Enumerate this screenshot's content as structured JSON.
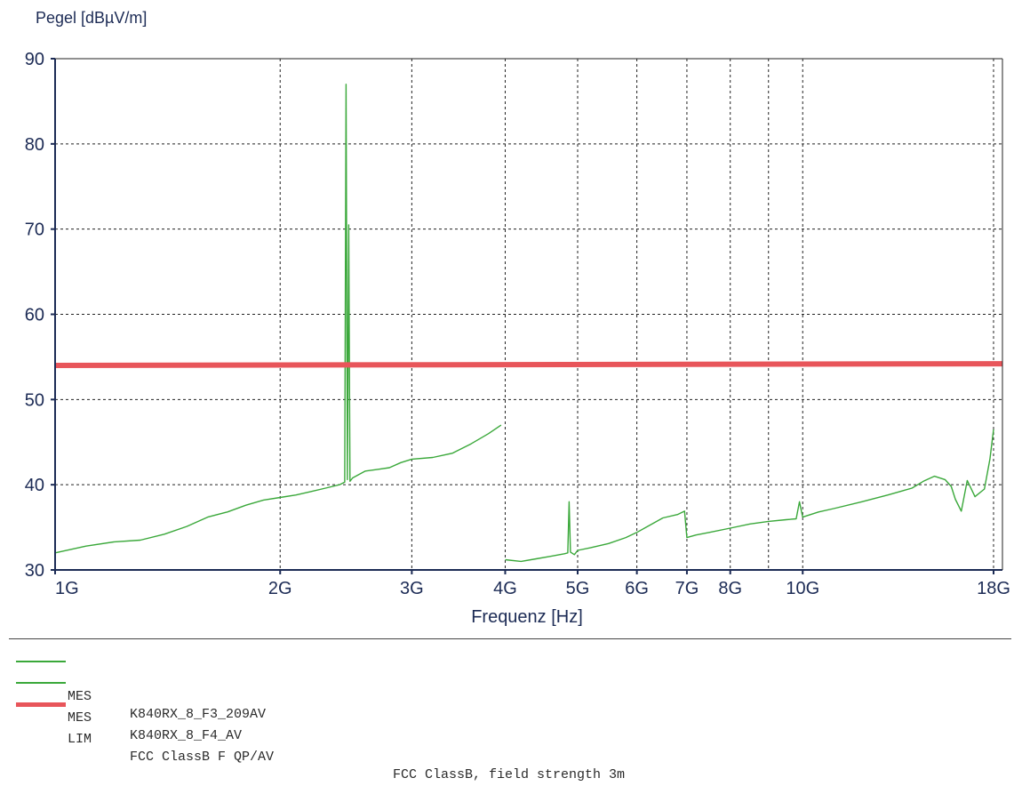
{
  "chart_data": {
    "type": "line",
    "ylabel": "Pegel [dBµV/m]",
    "xlabel": "Frequenz [Hz]",
    "x_scale": "log",
    "xlim": [
      1000000000,
      18500000000
    ],
    "ylim": [
      30,
      90
    ],
    "yticks": [
      30,
      40,
      50,
      60,
      70,
      80,
      90
    ],
    "xticks": [
      {
        "value": 1000000000,
        "label": "1G"
      },
      {
        "value": 2000000000,
        "label": "2G"
      },
      {
        "value": 3000000000,
        "label": "3G"
      },
      {
        "value": 4000000000,
        "label": "4G"
      },
      {
        "value": 5000000000,
        "label": "5G"
      },
      {
        "value": 6000000000,
        "label": "6G"
      },
      {
        "value": 7000000000,
        "label": "7G"
      },
      {
        "value": 8000000000,
        "label": "8G"
      },
      {
        "value": 10000000000,
        "label": "10G"
      },
      {
        "value": 18000000000,
        "label": "18G"
      }
    ],
    "x_gridlines": [
      2000000000,
      3000000000,
      4000000000,
      5000000000,
      6000000000,
      7000000000,
      8000000000,
      9000000000,
      10000000000,
      18000000000
    ],
    "grid": true,
    "colors": {
      "measurement": "#3aa83a",
      "limit": "#e8555a",
      "axes": "#1c2b55"
    },
    "series": [
      {
        "kind": "measurement",
        "x": [
          1000000000,
          1100000000,
          1200000000,
          1300000000,
          1400000000,
          1500000000,
          1600000000,
          1700000000,
          1800000000,
          1900000000,
          2000000000,
          2100000000,
          2200000000,
          2300000000,
          2400000000,
          2440000000,
          2450000000,
          2460000000,
          2470000000,
          2480000000,
          2500000000,
          2600000000,
          2700000000,
          2800000000,
          2900000000,
          3000000000,
          3200000000,
          3400000000,
          3600000000,
          3800000000,
          3950000000
        ],
        "y": [
          32,
          32.8,
          33.3,
          33.5,
          34.2,
          35.1,
          36.2,
          36.8,
          37.6,
          38.2,
          38.5,
          38.8,
          39.2,
          39.6,
          40.0,
          40.3,
          87,
          40.6,
          70.5,
          40.4,
          40.8,
          41.6,
          41.8,
          42.0,
          42.6,
          43.0,
          43.2,
          43.7,
          44.8,
          46.0,
          47.0
        ]
      },
      {
        "kind": "measurement",
        "x": [
          4000000000,
          4200000000,
          4400000000,
          4600000000,
          4800000000,
          4850000000,
          4870000000,
          4890000000,
          4950000000,
          5000000000,
          5200000000,
          5500000000,
          5800000000,
          6000000000,
          6200000000,
          6500000000,
          6800000000,
          6950000000,
          7000000000,
          7200000000,
          7500000000,
          8000000000,
          8500000000,
          9000000000,
          9500000000,
          9800000000,
          9900000000,
          10000000000,
          10500000000,
          11000000000,
          12000000000,
          13000000000,
          14000000000,
          14500000000,
          15000000000,
          15500000000,
          15800000000,
          16000000000,
          16300000000,
          16600000000,
          17000000000,
          17500000000,
          17800000000,
          18000000000
        ],
        "y": [
          31.2,
          31.0,
          31.3,
          31.6,
          31.9,
          32.0,
          38.0,
          32.1,
          31.8,
          32.3,
          32.6,
          33.1,
          33.8,
          34.4,
          35.1,
          36.1,
          36.5,
          36.9,
          33.8,
          34.1,
          34.4,
          34.9,
          35.4,
          35.7,
          35.9,
          36.0,
          38.0,
          36.2,
          36.8,
          37.2,
          38.0,
          38.8,
          39.6,
          40.4,
          41.0,
          40.6,
          39.8,
          38.3,
          36.9,
          40.5,
          38.6,
          39.5,
          43.0,
          46.5
        ]
      },
      {
        "kind": "limit",
        "x": [
          1000000000,
          18500000000
        ],
        "y": [
          54.0,
          54.2
        ]
      }
    ]
  },
  "legend": [
    {
      "type": "MES",
      "name": "K840RX_8_F3_209AV",
      "desc": "",
      "color": "#3aa83a"
    },
    {
      "type": "MES",
      "name": "K840RX_8_F4_AV",
      "desc": "",
      "color": "#3aa83a"
    },
    {
      "type": "LIM",
      "name": "FCC ClassB F QP/AV",
      "desc": "FCC ClassB, field strength 3m",
      "color": "#e8555a"
    }
  ]
}
